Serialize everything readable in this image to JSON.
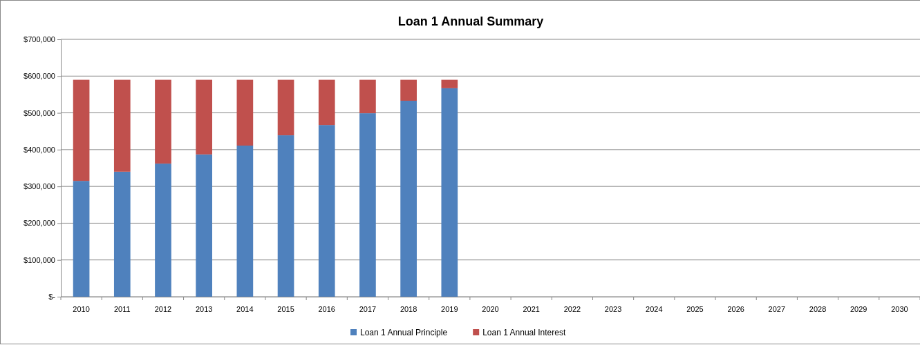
{
  "chart_data": {
    "type": "bar",
    "title": "Loan 1 Annual Summary",
    "stacked": true,
    "grid": "y",
    "legend": "bottom",
    "categories": [
      "2010",
      "2011",
      "2012",
      "2013",
      "2014",
      "2015",
      "2016",
      "2017",
      "2018",
      "2019",
      "2020",
      "2021",
      "2022",
      "2023",
      "2024",
      "2025",
      "2026",
      "2027",
      "2028",
      "2029",
      "2030"
    ],
    "series": [
      {
        "name": "Loan 1 Annual Principle",
        "color": "#4f81bd",
        "values": [
          315000,
          340000,
          362000,
          387000,
          411000,
          439000,
          467000,
          499000,
          533000,
          567000,
          null,
          null,
          null,
          null,
          null,
          null,
          null,
          null,
          null,
          null,
          null
        ]
      },
      {
        "name": "Loan 1 Annual Interest",
        "color": "#c0504d",
        "values": [
          275000,
          250000,
          228000,
          203000,
          179000,
          151000,
          123000,
          91000,
          57000,
          23000,
          null,
          null,
          null,
          null,
          null,
          null,
          null,
          null,
          null,
          null,
          null
        ]
      }
    ],
    "ylim": [
      0,
      700000
    ],
    "yticks": [
      {
        "value": 0,
        "label": "$-"
      },
      {
        "value": 100000,
        "label": "$100,000"
      },
      {
        "value": 200000,
        "label": "$200,000"
      },
      {
        "value": 300000,
        "label": "$300,000"
      },
      {
        "value": 400000,
        "label": "$400,000"
      },
      {
        "value": 500000,
        "label": "$500,000"
      },
      {
        "value": 600000,
        "label": "$600,000"
      },
      {
        "value": 700000,
        "label": "$700,000"
      }
    ]
  }
}
